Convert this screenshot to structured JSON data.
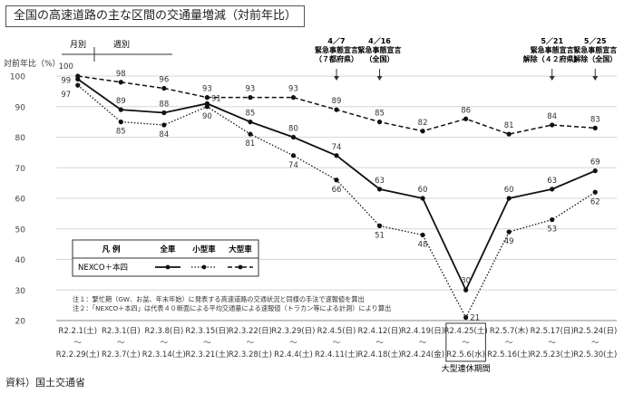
{
  "title": "全国の高速道路の主な区間の交通量増減（対前年比）",
  "source": "資料）国土交通省",
  "chart_data": {
    "type": "line",
    "ylabel": "対前年比（%）",
    "ylim": [
      20,
      100
    ],
    "yticks": [
      20,
      30,
      40,
      50,
      60,
      70,
      80,
      90,
      100
    ],
    "grid": true,
    "categories": [
      {
        "top": "R2.2.1(土)",
        "bottom": "R2.2.29(土)"
      },
      {
        "top": "R2.3.1(日)",
        "bottom": "R2.3.7(土)"
      },
      {
        "top": "R2.3.8(日)",
        "bottom": "R2.3.14(土)"
      },
      {
        "top": "R2.3.15(日)",
        "bottom": "R2.3.21(土)"
      },
      {
        "top": "R2.3.22(日)",
        "bottom": "R2.3.28(土)"
      },
      {
        "top": "R2.3.29(日)",
        "bottom": "R2.4.4(土)"
      },
      {
        "top": "R2.4.5(日)",
        "bottom": "R2.4.11(土)"
      },
      {
        "top": "R2.4.12(日)",
        "bottom": "R2.4.18(土)"
      },
      {
        "top": "R2.4.19(日)",
        "bottom": "R2.4.24(金)"
      },
      {
        "top": "R2.4.25(土)",
        "bottom": "R2.5.6(水)"
      },
      {
        "top": "R2.5.7(木)",
        "bottom": "R2.5.16(土)"
      },
      {
        "top": "R2.5.17(日)",
        "bottom": "R2.5.23(土)"
      },
      {
        "top": "R2.5.24(日)",
        "bottom": "R2.5.30(土)"
      }
    ],
    "tilde": "～",
    "series": [
      {
        "name": "全車",
        "style": "solid",
        "values": [
          99,
          89,
          88,
          91,
          85,
          80,
          74,
          63,
          60,
          30,
          60,
          63,
          69
        ]
      },
      {
        "name": "小型車",
        "style": "dotted",
        "values": [
          97,
          85,
          84,
          90,
          81,
          74,
          66,
          51,
          48,
          21,
          49,
          53,
          62
        ]
      },
      {
        "name": "大型車",
        "style": "dashed",
        "values": [
          100,
          98,
          96,
          93,
          93,
          93,
          89,
          85,
          82,
          86,
          81,
          84,
          83
        ]
      }
    ],
    "legend": {
      "position": "bottom-left",
      "header": "凡 例",
      "row_label": "NEXCO＋本四"
    },
    "period_labels": {
      "monthly": "月別",
      "weekly": "週別"
    },
    "highlight": {
      "index": 9,
      "label": "大型連休期間"
    },
    "events": [
      {
        "index": 6,
        "lines": [
          "4／7",
          "緊急事態宣言",
          "（７都府県）"
        ]
      },
      {
        "index": 7,
        "lines": [
          "4／16",
          "緊急事態宣言",
          "（全国）"
        ]
      },
      {
        "index": 11,
        "lines": [
          "5／21",
          "緊急事態宣言",
          "解除（４２府県）"
        ]
      },
      {
        "index": 12,
        "lines": [
          "5／25",
          "緊急事態宣言",
          "解除（全国）"
        ]
      }
    ],
    "notes": [
      "注１：繁忙期（GW、お盆、年末年始）に発表する高速道路の交通状況と同様の手法で速報値を算出",
      "注２：「NEXCO＋本四」は代表４０断面による平均交通量による速報値（トラカン等による計測）により算出"
    ]
  }
}
